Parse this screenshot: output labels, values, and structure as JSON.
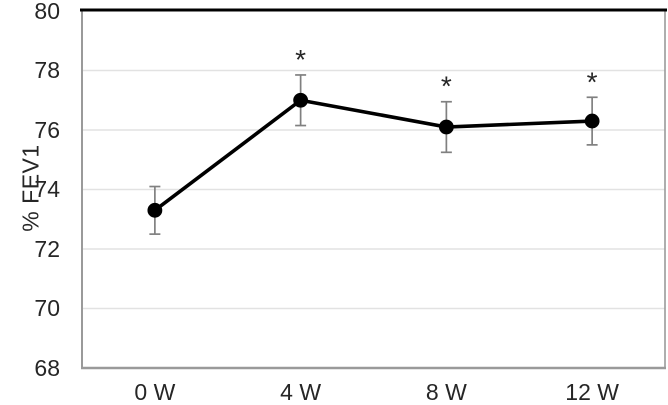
{
  "chart_data": {
    "type": "line",
    "title": "",
    "xlabel": "",
    "ylabel": "% FEV1",
    "categories": [
      "0 W",
      "4 W",
      "8 W",
      "12 W"
    ],
    "values": [
      73.3,
      77.0,
      76.1,
      76.3
    ],
    "errors": [
      0.8,
      0.85,
      0.85,
      0.8
    ],
    "significance": [
      "",
      "*",
      "*",
      "*"
    ],
    "ylim": [
      68,
      80
    ],
    "ytick_step": 2,
    "yticks": [
      68,
      70,
      72,
      74,
      76,
      78,
      80
    ],
    "grid": "horizontal",
    "legend": "none",
    "marker": "filled-circle",
    "colors": {
      "line": "#000000",
      "marker": "#000000",
      "error_bar": "#808080",
      "gridline": "#e2e2e2",
      "frame": "#9a9a9a",
      "frame_top": "#000000",
      "text": "#262626",
      "background": "#ffffff"
    }
  }
}
